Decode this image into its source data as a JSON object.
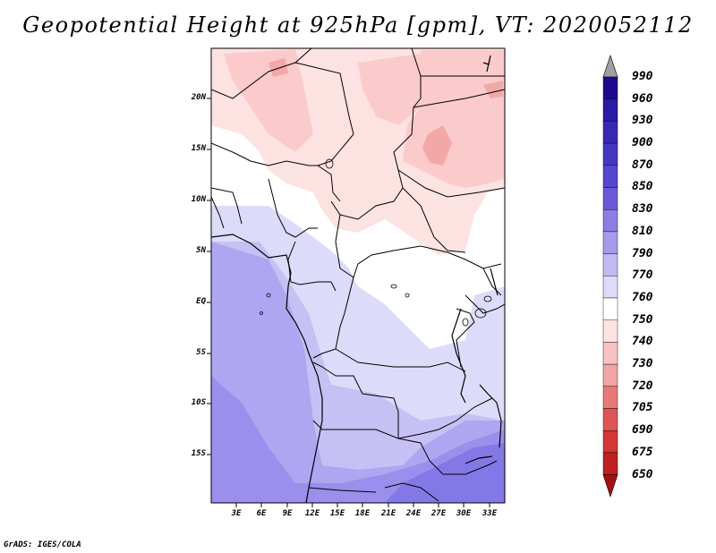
{
  "title": "Geopotential Height at 925hPa [gpm], VT: 2020052112",
  "credit": "GrADS: IGES/COLA",
  "lat_labels": [
    "20N",
    "15N",
    "10N",
    "5N",
    "EQ",
    "5S",
    "10S",
    "15S"
  ],
  "lon_labels": [
    "3E",
    "6E",
    "9E",
    "12E",
    "15E",
    "18E",
    "21E",
    "24E",
    "27E",
    "30E",
    "33E"
  ],
  "colorbar": {
    "levels": [
      "990",
      "960",
      "930",
      "900",
      "870",
      "850",
      "830",
      "810",
      "790",
      "770",
      "760",
      "750",
      "740",
      "730",
      "720",
      "705",
      "690",
      "675",
      "650"
    ],
    "colors": [
      "#1e0a91",
      "#2a1aa5",
      "#3828b4",
      "#4535c3",
      "#5545d0",
      "#6a5ad8",
      "#8a7ee2",
      "#a49cea",
      "#c0bbf2",
      "#dcdcfa",
      "#ffffff",
      "#fde2e2",
      "#f8c2c2",
      "#f2a3a3",
      "#e87878",
      "#df5454",
      "#d43535",
      "#c01f1f",
      "#a81010"
    ]
  },
  "map_colors": {
    "c790": "#c6c0f4",
    "c770": "#dcdcfa",
    "c760": "#ffffff",
    "c750": "#fde2e2",
    "c740": "#fbcaca",
    "c730": "#f3a8a8",
    "c810": "#aea6f0",
    "c830": "#9a8fec",
    "c850": "#8478e6"
  }
}
